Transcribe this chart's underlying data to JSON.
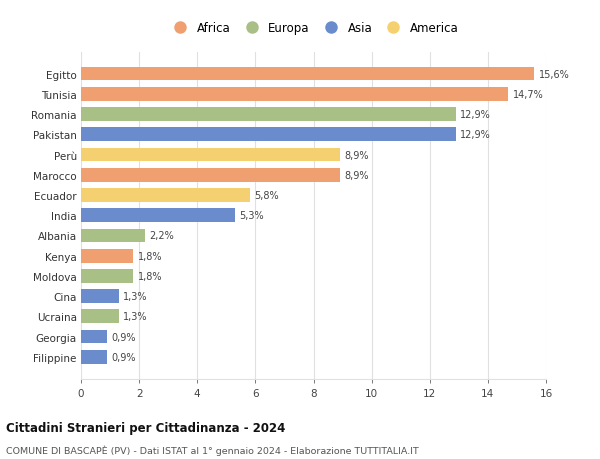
{
  "categories": [
    "Filippine",
    "Georgia",
    "Ucraina",
    "Cina",
    "Moldova",
    "Kenya",
    "Albania",
    "India",
    "Ecuador",
    "Marocco",
    "Perù",
    "Pakistan",
    "Romania",
    "Tunisia",
    "Egitto"
  ],
  "values": [
    0.9,
    0.9,
    1.3,
    1.3,
    1.8,
    1.8,
    2.2,
    5.3,
    5.8,
    8.9,
    8.9,
    12.9,
    12.9,
    14.7,
    15.6
  ],
  "colors": [
    "#6b8ccc",
    "#6b8ccc",
    "#a8bf85",
    "#6b8ccc",
    "#a8bf85",
    "#f0a070",
    "#a8bf85",
    "#6b8ccc",
    "#f5d070",
    "#f0a070",
    "#f5d070",
    "#6b8ccc",
    "#a8bf85",
    "#f0a070",
    "#f0a070"
  ],
  "labels": [
    "0,9%",
    "0,9%",
    "1,3%",
    "1,3%",
    "1,8%",
    "1,8%",
    "2,2%",
    "5,3%",
    "5,8%",
    "8,9%",
    "8,9%",
    "12,9%",
    "12,9%",
    "14,7%",
    "15,6%"
  ],
  "legend": [
    {
      "label": "Africa",
      "color": "#f0a070"
    },
    {
      "label": "Europa",
      "color": "#a8bf85"
    },
    {
      "label": "Asia",
      "color": "#6b8ccc"
    },
    {
      "label": "America",
      "color": "#f5d070"
    }
  ],
  "title1": "Cittadini Stranieri per Cittadinanza - 2024",
  "title2": "COMUNE DI BASCAPÈ (PV) - Dati ISTAT al 1° gennaio 2024 - Elaborazione TUTTITALIA.IT",
  "xlim": [
    0,
    16
  ],
  "xticks": [
    0,
    2,
    4,
    6,
    8,
    10,
    12,
    14,
    16
  ],
  "background_color": "#ffffff",
  "grid_color": "#e0e0e0"
}
